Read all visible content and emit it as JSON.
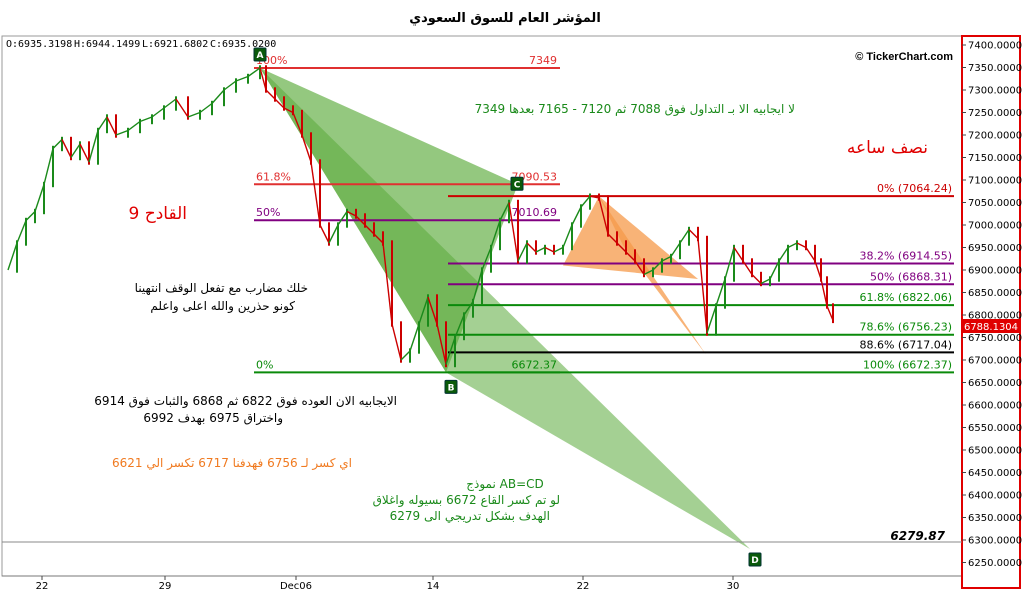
{
  "title": "المؤشر العام للسوق السعودي",
  "ohlc": {
    "open": "O:6935.3198",
    "high": "H:6944.1499",
    "low": "L:6921.6802",
    "close": "C:6935.0200"
  },
  "watermark": "© TickerChart.com",
  "price_label": "6788.1304",
  "target_label": "6279.87",
  "colors": {
    "up": "#1a8a1a",
    "down": "#cc0000",
    "abcd_fill": "#5aaa3a",
    "harmonic_fill": "#f59a4a",
    "target_box": "#e00000"
  },
  "chart_data": {
    "type": "candlestick",
    "y_axis": {
      "min": 6220,
      "max": 7420,
      "ticks": [
        "7400.0000",
        "7350.0000",
        "7300.0000",
        "7250.0000",
        "7200.0000",
        "7150.0000",
        "7100.0000",
        "7050.0000",
        "7000.0000",
        "6950.0000",
        "6900.0000",
        "6850.0000",
        "6800.0000",
        "6750.0000",
        "6700.0000",
        "6650.0000",
        "6600.0000",
        "6550.0000",
        "6500.0000",
        "6450.0000",
        "6400.0000",
        "6350.0000",
        "6300.0000",
        "6250.0000"
      ]
    },
    "x_ticks": [
      "22",
      "29",
      "Dec06",
      "14",
      "22",
      "30"
    ],
    "close_path": [
      [
        0,
        6900
      ],
      [
        3,
        6960
      ],
      [
        6,
        7010
      ],
      [
        9,
        7030
      ],
      [
        12,
        7090
      ],
      [
        15,
        7170
      ],
      [
        18,
        7190
      ],
      [
        21,
        7150
      ],
      [
        24,
        7180
      ],
      [
        27,
        7140
      ],
      [
        30,
        7210
      ],
      [
        33,
        7240
      ],
      [
        36,
        7200
      ],
      [
        40,
        7210
      ],
      [
        44,
        7230
      ],
      [
        48,
        7240
      ],
      [
        52,
        7260
      ],
      [
        56,
        7280
      ],
      [
        60,
        7240
      ],
      [
        64,
        7250
      ],
      [
        68,
        7270
      ],
      [
        72,
        7300
      ],
      [
        76,
        7320
      ],
      [
        80,
        7330
      ],
      [
        84,
        7349
      ],
      [
        86,
        7300
      ],
      [
        89,
        7280
      ],
      [
        92,
        7260
      ],
      [
        95,
        7250
      ],
      [
        98,
        7200
      ],
      [
        101,
        7140
      ],
      [
        104,
        7000
      ],
      [
        107,
        6960
      ],
      [
        110,
        7000
      ],
      [
        113,
        7030
      ],
      [
        116,
        7020
      ],
      [
        119,
        7000
      ],
      [
        122,
        6980
      ],
      [
        125,
        6960
      ],
      [
        128,
        6780
      ],
      [
        131,
        6700
      ],
      [
        134,
        6720
      ],
      [
        137,
        6780
      ],
      [
        140,
        6840
      ],
      [
        143,
        6780
      ],
      [
        146,
        6690
      ],
      [
        149,
        6750
      ],
      [
        152,
        6800
      ],
      [
        155,
        6830
      ],
      [
        158,
        6900
      ],
      [
        161,
        6950
      ],
      [
        164,
        7010
      ],
      [
        167,
        7050
      ],
      [
        170,
        6920
      ],
      [
        173,
        6960
      ],
      [
        176,
        6940
      ],
      [
        179,
        6950
      ],
      [
        182,
        6940
      ],
      [
        185,
        6950
      ],
      [
        188,
        7000
      ],
      [
        191,
        7040
      ],
      [
        194,
        7064
      ],
      [
        197,
        7060
      ],
      [
        200,
        6980
      ],
      [
        203,
        6960
      ],
      [
        206,
        6940
      ],
      [
        209,
        6920
      ],
      [
        212,
        6890
      ],
      [
        215,
        6900
      ],
      [
        218,
        6920
      ],
      [
        221,
        6930
      ],
      [
        224,
        6960
      ],
      [
        227,
        6990
      ],
      [
        230,
        6970
      ],
      [
        233,
        6760
      ],
      [
        236,
        6820
      ],
      [
        239,
        6880
      ],
      [
        242,
        6950
      ],
      [
        245,
        6920
      ],
      [
        248,
        6890
      ],
      [
        251,
        6870
      ],
      [
        254,
        6880
      ],
      [
        257,
        6920
      ],
      [
        260,
        6950
      ],
      [
        263,
        6960
      ],
      [
        266,
        6950
      ],
      [
        269,
        6920
      ],
      [
        271,
        6880
      ],
      [
        273,
        6820
      ],
      [
        275,
        6788
      ]
    ],
    "fib_left": [
      {
        "pct": "100%",
        "value": "7349",
        "price": 7349
      },
      {
        "pct": "61.8%",
        "value": "7090.53",
        "price": 7090.53
      },
      {
        "pct": "50%",
        "value": "7010.69",
        "price": 7010.69
      },
      {
        "pct": "0%",
        "value": "6672.37",
        "price": 6672.37
      }
    ],
    "fib_right": [
      {
        "label": "0%  (7064.24)",
        "price": 7064.24,
        "color": "#cc0000"
      },
      {
        "label": "38.2%  (6914.55)",
        "price": 6914.55,
        "color": "#800080"
      },
      {
        "label": "50%  (6868.31)",
        "price": 6868.31,
        "color": "#800080"
      },
      {
        "label": "61.8%  (6822.06)",
        "price": 6822.06,
        "color": "#0a8a0a"
      },
      {
        "label": "78.6%  (6756.23)",
        "price": 6756.23,
        "color": "#0a8a0a"
      },
      {
        "label": "88.6%  (6717.04)",
        "price": 6717.04,
        "color": "#000000"
      },
      {
        "label": "100%  (6672.37)",
        "price": 6672.37,
        "color": "#0a8a0a"
      }
    ],
    "points": {
      "A": "A",
      "B": "B",
      "C": "C",
      "D": "D"
    },
    "target_line": 6279.87
  },
  "annotations": {
    "above": "لا ايجابيه الا بـ التداول فوق 7088 ثم 7120 - 7165 بعدها 7349",
    "half_hour": "نصف ساعه",
    "qadeh": "القادح 9",
    "stop1": "خلك مضارب مع تفعل الوقف انتهينا",
    "stop2": "كونو حذرين والله اعلى واعلم",
    "pos1": "الايجابيه الان العوده فوق 6822 ثم 6868 والثبات فوق 6914",
    "pos2": "واختراق  6975  بهدف 6992",
    "break": "اي كسر لـ 6756 فهدفنا 6717 تكسر الي 6621",
    "abcd1": "نموذج  AB=CD",
    "abcd2": "لو تم كسر القاع 6672 بسيوله واغلاق",
    "abcd3": "الهدف بشكل تدريجي الى 6279"
  }
}
